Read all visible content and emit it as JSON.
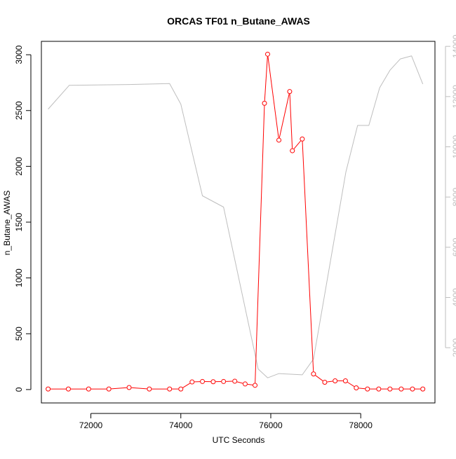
{
  "chart_data": {
    "type": "line",
    "title": "ORCAS TF01 n_Butane_AWAS",
    "xlabel": "UTC Seconds",
    "ylabel": "n_Butane_AWAS",
    "y2label": "",
    "xlim": [
      70900,
      79650
    ],
    "ylim": [
      -120,
      3120
    ],
    "y2lim": [
      -200,
      14200
    ],
    "x_ticks": [
      72000,
      74000,
      76000,
      78000
    ],
    "y_ticks": [
      0,
      500,
      1000,
      1500,
      2000,
      2500,
      3000
    ],
    "y2_ticks": [
      2000,
      4000,
      6000,
      8000,
      10000,
      12000,
      14000
    ],
    "grid": false,
    "series": [
      {
        "name": "",
        "axis": "left",
        "color": "#ff0000",
        "marker": "open-circle",
        "points": [
          [
            71050,
            5
          ],
          [
            71500,
            5
          ],
          [
            71950,
            5
          ],
          [
            72400,
            5
          ],
          [
            72850,
            18
          ],
          [
            73300,
            5
          ],
          [
            73750,
            5
          ],
          [
            74000,
            5
          ],
          [
            74250,
            68
          ],
          [
            74480,
            72
          ],
          [
            74720,
            70
          ],
          [
            74950,
            72
          ],
          [
            75200,
            75
          ],
          [
            75430,
            50
          ],
          [
            75650,
            38
          ],
          [
            75860,
            2565
          ],
          [
            75930,
            3005
          ],
          [
            76180,
            2235
          ],
          [
            76420,
            2670
          ],
          [
            76480,
            2140
          ],
          [
            76700,
            2245
          ],
          [
            76950,
            140
          ],
          [
            77200,
            65
          ],
          [
            77430,
            78
          ],
          [
            77660,
            78
          ],
          [
            77900,
            15
          ],
          [
            78150,
            5
          ],
          [
            78400,
            5
          ],
          [
            78650,
            5
          ],
          [
            78900,
            5
          ],
          [
            79150,
            5
          ],
          [
            79380,
            5
          ]
        ]
      },
      {
        "name": "",
        "axis": "right",
        "color": "#bebebe",
        "marker": "none",
        "points": [
          [
            71050,
            11500
          ],
          [
            71520,
            12450
          ],
          [
            72850,
            12480
          ],
          [
            73750,
            12520
          ],
          [
            74000,
            11700
          ],
          [
            74480,
            8050
          ],
          [
            74950,
            7600
          ],
          [
            75720,
            1150
          ],
          [
            75930,
            800
          ],
          [
            76180,
            970
          ],
          [
            76700,
            920
          ],
          [
            76950,
            1550
          ],
          [
            77670,
            9000
          ],
          [
            77930,
            10850
          ],
          [
            78180,
            10850
          ],
          [
            78420,
            12350
          ],
          [
            78650,
            13050
          ],
          [
            78880,
            13500
          ],
          [
            79130,
            13620
          ],
          [
            79380,
            12500
          ]
        ]
      }
    ]
  }
}
